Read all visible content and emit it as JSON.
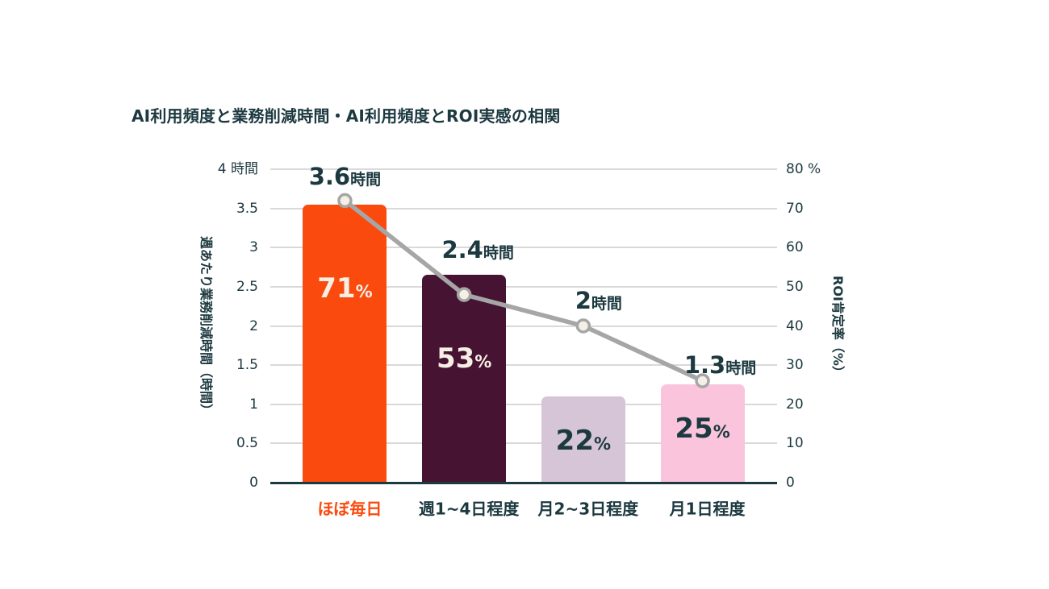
{
  "title": "AI利用頻度と業務削減時間・AI利用頻度とROI実感の相関",
  "colors": {
    "text": "#1C3940",
    "grid": "#D9D9D9",
    "axis_line": "#1C3940",
    "trend_line": "#A6A6A6",
    "marker_fill": "#F5F0E6",
    "highlight": "#FA4A0E"
  },
  "chart_data": {
    "type": "bar+line combo",
    "title": "AI利用頻度と業務削減時間・AI利用頻度とROI実感の相関",
    "grid": true,
    "legend": false,
    "categories": [
      {
        "label": "ほぼ毎日",
        "highlight": true
      },
      {
        "label": "週1~4日程度",
        "highlight": false
      },
      {
        "label": "月2~3日程度",
        "highlight": false
      },
      {
        "label": "月1日程度",
        "highlight": false
      }
    ],
    "bar_series": {
      "name": "ROI肯定率（%）",
      "axis": "right",
      "values": [
        71,
        53,
        22,
        25
      ],
      "value_labels": [
        {
          "num": "71",
          "unit": "%"
        },
        {
          "num": "53",
          "unit": "%"
        },
        {
          "num": "22",
          "unit": "%"
        },
        {
          "num": "25",
          "unit": "%"
        }
      ],
      "bar_colors": [
        "#FA4A0E",
        "#461332",
        "#D6C4D7",
        "#F9C4DC"
      ],
      "label_colors": [
        "#F5EFE4",
        "#F5EFE4",
        "#1C3940",
        "#1C3940"
      ]
    },
    "line_series": {
      "name": "週あたり業務削減時間（時間）",
      "axis": "left",
      "values": [
        3.6,
        2.4,
        2,
        1.3
      ],
      "value_labels": [
        {
          "num": "3.6",
          "unit": "時間"
        },
        {
          "num": "2.4",
          "unit": "時間"
        },
        {
          "num": "2",
          "unit": "時間"
        },
        {
          "num": "1.3",
          "unit": "時間"
        }
      ]
    },
    "left_axis": {
      "title": "週あたり業務削減時間（時間）",
      "min": 0,
      "max": 4,
      "tick_labels": [
        "4 時間",
        "3.5",
        "3",
        "2.5",
        "2",
        "1.5",
        "1",
        "0.5",
        "0"
      ]
    },
    "right_axis": {
      "title": "ROI肯定率（%）",
      "min": 0,
      "max": 80,
      "tick_labels": [
        "80 %",
        "70",
        "60",
        "50",
        "40",
        "30",
        "20",
        "10",
        "0"
      ]
    }
  }
}
